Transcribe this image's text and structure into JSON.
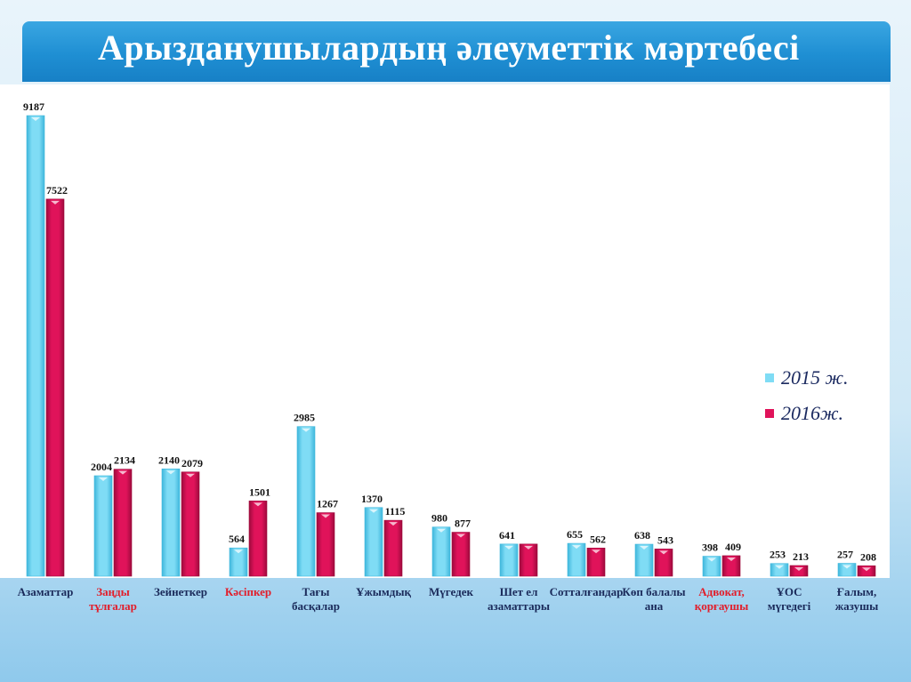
{
  "chart_data": {
    "type": "bar",
    "title": "Арызданушылардың әлеуметтік мәртебесі",
    "categories": [
      "Азаматтар",
      "Заңды тұлғалар",
      "Зейнеткер",
      "Кәсіпкер",
      "Тағы басқалар",
      "Ұжымдық",
      "Мүгедек",
      "Шет ел азаматтары",
      "Сотталғандар",
      "Көп балалы ана",
      "Адвокат, қорғаушы",
      "ҰОС мүгедегі",
      "Ғалым, жазушы"
    ],
    "category_lines": [
      [
        "Азаматтар"
      ],
      [
        "Заңды",
        "тұлғалар"
      ],
      [
        "Зейнеткер"
      ],
      [
        "Кәсіпкер"
      ],
      [
        "Тағы",
        "басқалар"
      ],
      [
        "Ұжымдық"
      ],
      [
        "Мүгедек"
      ],
      [
        "Шет ел",
        "азаматтары"
      ],
      [
        "Сотталғандар"
      ],
      [
        "Көп балалы",
        "ана"
      ],
      [
        "Адвокат,",
        "қорғаушы"
      ],
      [
        "ҰОС",
        "мүгедегі"
      ],
      [
        "Ғалым,",
        "жазушы"
      ]
    ],
    "highlighted_categories": [
      1,
      3,
      10
    ],
    "series": [
      {
        "name": "2015 ж.",
        "color": "#7fdcf5",
        "values": [
          9187,
          2004,
          2140,
          564,
          2985,
          1370,
          980,
          641,
          655,
          638,
          398,
          253,
          257
        ],
        "labels": [
          "9187",
          "2004",
          "2140",
          "564",
          "2985",
          "1370",
          "980",
          "641",
          "655",
          "638",
          "398",
          "253",
          "257"
        ]
      },
      {
        "name": "2016ж.",
        "color": "#e0135a",
        "values": [
          7522,
          2134,
          2079,
          1501,
          1267,
          1115,
          877,
          641,
          562,
          543,
          409,
          213,
          208
        ],
        "labels": [
          "7522",
          "2134",
          "2079",
          "1501",
          "1267",
          "1115",
          "877",
          "",
          "562",
          "543",
          "409",
          "213",
          "208"
        ]
      }
    ],
    "ylim": [
      0,
      9187
    ],
    "legend": "right",
    "grid": false
  }
}
